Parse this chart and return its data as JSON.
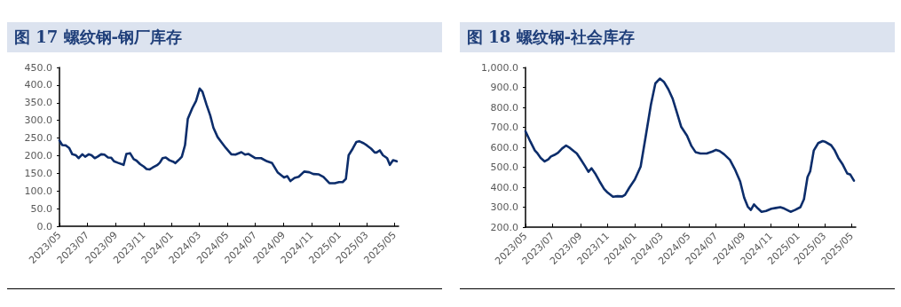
{
  "chart_data": [
    {
      "type": "line",
      "title": "图 17 螺纹钢-钢厂库存",
      "grid": false,
      "marker": "none",
      "line_style": "solid",
      "xlim": [
        "2023-05-01",
        "2025-05-10"
      ],
      "xticks": [
        {
          "value": "2023-05",
          "label": "2023/05"
        },
        {
          "value": "2023-07",
          "label": "2023/07"
        },
        {
          "value": "2023-09",
          "label": "2023/09"
        },
        {
          "value": "2023-11",
          "label": "2023/11"
        },
        {
          "value": "2024-01",
          "label": "2024/01"
        },
        {
          "value": "2024-03",
          "label": "2024/03"
        },
        {
          "value": "2024-05",
          "label": "2024/05"
        },
        {
          "value": "2024-07",
          "label": "2024/07"
        },
        {
          "value": "2024-09",
          "label": "2024/09"
        },
        {
          "value": "2024-11",
          "label": "2024/11"
        },
        {
          "value": "2025-01",
          "label": "2025/01"
        },
        {
          "value": "2025-03",
          "label": "2025/03"
        },
        {
          "value": "2025-05",
          "label": "2025/05"
        }
      ],
      "ylim": [
        0,
        450
      ],
      "yticks": [
        {
          "value": 0,
          "label": "0.0"
        },
        {
          "value": 50,
          "label": "50.0"
        },
        {
          "value": 100,
          "label": "100.0"
        },
        {
          "value": 150,
          "label": "150.0"
        },
        {
          "value": 200,
          "label": "200.0"
        },
        {
          "value": 250,
          "label": "250.0"
        },
        {
          "value": 300,
          "label": "300.0"
        },
        {
          "value": 350,
          "label": "350.0"
        },
        {
          "value": 400,
          "label": "400.0"
        },
        {
          "value": 450,
          "label": "450.0"
        }
      ],
      "x": [
        "2023-05-01",
        "2023-05-07",
        "2023-05-15",
        "2023-05-22",
        "2023-05-29",
        "2023-06-06",
        "2023-06-12",
        "2023-06-20",
        "2023-06-26",
        "2023-07-04",
        "2023-07-10",
        "2023-07-17",
        "2023-07-23",
        "2023-07-31",
        "2023-08-07",
        "2023-08-15",
        "2023-08-22",
        "2023-08-28",
        "2023-09-05",
        "2023-09-18",
        "2023-09-24",
        "2023-10-02",
        "2023-10-10",
        "2023-10-16",
        "2023-10-24",
        "2023-11-01",
        "2023-11-07",
        "2023-11-14",
        "2023-11-20",
        "2023-11-30",
        "2023-12-06",
        "2023-12-12",
        "2023-12-19",
        "2023-12-27",
        "2024-01-04",
        "2024-01-09",
        "2024-01-18",
        "2024-01-23",
        "2024-01-30",
        "2024-02-05",
        "2024-02-15",
        "2024-02-23",
        "2024-03-02",
        "2024-03-08",
        "2024-03-17",
        "2024-03-25",
        "2024-04-01",
        "2024-04-10",
        "2024-04-18",
        "2024-04-28",
        "2024-05-10",
        "2024-05-19",
        "2024-06-01",
        "2024-06-09",
        "2024-06-16",
        "2024-07-01",
        "2024-07-14",
        "2024-07-27",
        "2024-08-07",
        "2024-08-19",
        "2024-09-02",
        "2024-09-09",
        "2024-09-16",
        "2024-09-25",
        "2024-10-04",
        "2024-10-16",
        "2024-10-27",
        "2024-11-05",
        "2024-11-17",
        "2024-11-27",
        "2024-12-10",
        "2024-12-22",
        "2024-12-31",
        "2025-01-08",
        "2025-01-15",
        "2025-01-21",
        "2025-01-30",
        "2025-02-07",
        "2025-02-13",
        "2025-02-23",
        "2025-03-02",
        "2025-03-11",
        "2025-03-19",
        "2025-03-23",
        "2025-03-30",
        "2025-04-06",
        "2025-04-15",
        "2025-04-21",
        "2025-04-28",
        "2025-05-06"
      ],
      "series": [
        {
          "color": "#0c2d6b",
          "values": [
            243,
            230,
            229,
            222,
            204,
            201,
            193,
            204,
            197,
            204,
            201,
            193,
            197,
            204,
            203,
            195,
            194,
            184,
            180,
            174,
            205,
            207,
            190,
            186,
            176,
            169,
            162,
            161,
            166,
            173,
            180,
            193,
            195,
            187,
            183,
            179,
            190,
            197,
            230,
            304,
            335,
            355,
            390,
            381,
            344,
            314,
            279,
            253,
            239,
            222,
            204,
            203,
            210,
            203,
            205,
            193,
            193,
            184,
            179,
            153,
            138,
            142,
            128,
            137,
            140,
            155,
            153,
            148,
            147,
            140,
            122,
            122,
            125,
            125,
            134,
            201,
            220,
            239,
            241,
            235,
            229,
            220,
            209,
            209,
            215,
            201,
            193,
            174,
            187,
            184
          ]
        }
      ]
    },
    {
      "type": "line",
      "title": "图 18 螺纹钢-社会库存",
      "grid": false,
      "marker": "none",
      "line_style": "solid",
      "xlim": [
        "2023-05-01",
        "2025-05-10"
      ],
      "xticks": [
        {
          "value": "2023-05",
          "label": "2023/05"
        },
        {
          "value": "2023-07",
          "label": "2023/07"
        },
        {
          "value": "2023-09",
          "label": "2023/09"
        },
        {
          "value": "2023-11",
          "label": "2023/11"
        },
        {
          "value": "2024-01",
          "label": "2024/01"
        },
        {
          "value": "2024-03",
          "label": "2024/03"
        },
        {
          "value": "2024-05",
          "label": "2024/05"
        },
        {
          "value": "2024-07",
          "label": "2024/07"
        },
        {
          "value": "2024-09",
          "label": "2024/09"
        },
        {
          "value": "2024-11",
          "label": "2024/11"
        },
        {
          "value": "2025-01",
          "label": "2025/01"
        },
        {
          "value": "2025-03",
          "label": "2025/03"
        },
        {
          "value": "2025-05",
          "label": "2025/05"
        }
      ],
      "ylim": [
        200,
        1000
      ],
      "yticks": [
        {
          "value": 200,
          "label": "200.0"
        },
        {
          "value": 300,
          "label": "300.0"
        },
        {
          "value": 400,
          "label": "400.0"
        },
        {
          "value": 500,
          "label": "500.0"
        },
        {
          "value": 600,
          "label": "600.0"
        },
        {
          "value": 700,
          "label": "700.0"
        },
        {
          "value": 800,
          "label": "800.0"
        },
        {
          "value": 900,
          "label": "900.0"
        },
        {
          "value": 1000,
          "label": "1,000.0"
        }
      ],
      "x": [
        "2023-05-01",
        "2023-05-12",
        "2023-05-22",
        "2023-05-28",
        "2023-06-04",
        "2023-06-13",
        "2023-06-21",
        "2023-06-27",
        "2023-07-05",
        "2023-07-13",
        "2023-07-22",
        "2023-07-31",
        "2023-08-09",
        "2023-08-17",
        "2023-08-24",
        "2023-09-01",
        "2023-09-11",
        "2023-09-19",
        "2023-09-26",
        "2023-10-04",
        "2023-10-14",
        "2023-10-24",
        "2023-11-01",
        "2023-11-13",
        "2023-11-23",
        "2023-12-04",
        "2023-12-10",
        "2023-12-20",
        "2024-01-01",
        "2024-01-14",
        "2024-01-25",
        "2024-02-06",
        "2024-02-16",
        "2024-02-26",
        "2024-03-06",
        "2024-03-16",
        "2024-03-26",
        "2024-04-04",
        "2024-04-14",
        "2024-04-27",
        "2024-05-07",
        "2024-05-16",
        "2024-05-27",
        "2024-06-10",
        "2024-06-23",
        "2024-07-01",
        "2024-07-09",
        "2024-07-19",
        "2024-08-01",
        "2024-08-12",
        "2024-08-24",
        "2024-09-02",
        "2024-09-10",
        "2024-09-17",
        "2024-09-24",
        "2024-10-03",
        "2024-10-11",
        "2024-10-21",
        "2024-11-02",
        "2024-11-12",
        "2024-11-22",
        "2024-12-01",
        "2024-12-15",
        "2024-12-25",
        "2025-01-06",
        "2025-01-14",
        "2025-01-22",
        "2025-01-28",
        "2025-02-05",
        "2025-02-15",
        "2025-02-25",
        "2025-03-02",
        "2025-03-16",
        "2025-03-24",
        "2025-04-01",
        "2025-04-11",
        "2025-04-21",
        "2025-04-28",
        "2025-05-06"
      ],
      "series": [
        {
          "color": "#0c2d6b",
          "values": [
            680,
            628,
            584,
            569,
            547,
            529,
            539,
            554,
            562,
            573,
            594,
            609,
            596,
            581,
            569,
            542,
            507,
            477,
            495,
            469,
            429,
            392,
            373,
            352,
            355,
            354,
            362,
            399,
            439,
            503,
            650,
            813,
            920,
            944,
            928,
            891,
            842,
            776,
            702,
            658,
            606,
            576,
            569,
            569,
            579,
            587,
            581,
            565,
            537,
            491,
            429,
            348,
            303,
            286,
            314,
            293,
            277,
            281,
            292,
            296,
            300,
            293,
            277,
            286,
            300,
            340,
            451,
            480,
            584,
            621,
            631,
            628,
            610,
            584,
            547,
            513,
            469,
            463,
            433
          ]
        }
      ]
    }
  ]
}
